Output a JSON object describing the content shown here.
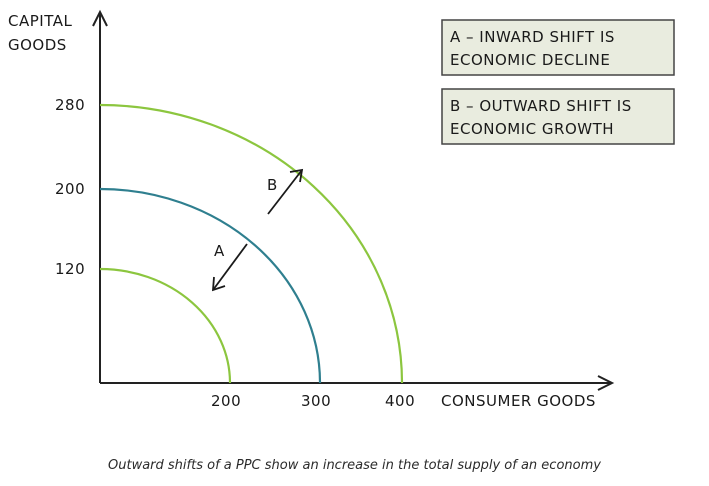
{
  "axis": {
    "y_label_line1": "CAPITAL",
    "y_label_line2": "GOODS",
    "x_label": "CONSUMER GOODS"
  },
  "legend": {
    "box_a_line1": "A – INWARD SHIFT IS",
    "box_a_line2": "ECONOMIC DECLINE",
    "box_b_line1": "B – OUTWARD SHIFT IS",
    "box_b_line2": "ECONOMIC GROWTH"
  },
  "arrows": {
    "a_label": "A",
    "b_label": "B"
  },
  "caption": "Outward shifts of a PPC show an increase in the total supply of an economy",
  "colors": {
    "outer_curve": "#8cc63f",
    "middle_curve": "#2f7f8f",
    "inner_curve": "#8cc63f",
    "box_fill": "#e9ecdf",
    "box_stroke": "#444444",
    "axis": "#222222"
  },
  "chart_data": {
    "type": "line",
    "x_ticks": [
      "200",
      "300",
      "400"
    ],
    "y_ticks": [
      "120",
      "200",
      "280"
    ],
    "curves": [
      {
        "x_intercept": 200,
        "y_intercept": 120
      },
      {
        "x_intercept": 300,
        "y_intercept": 200
      },
      {
        "x_intercept": 400,
        "y_intercept": 280
      }
    ]
  }
}
